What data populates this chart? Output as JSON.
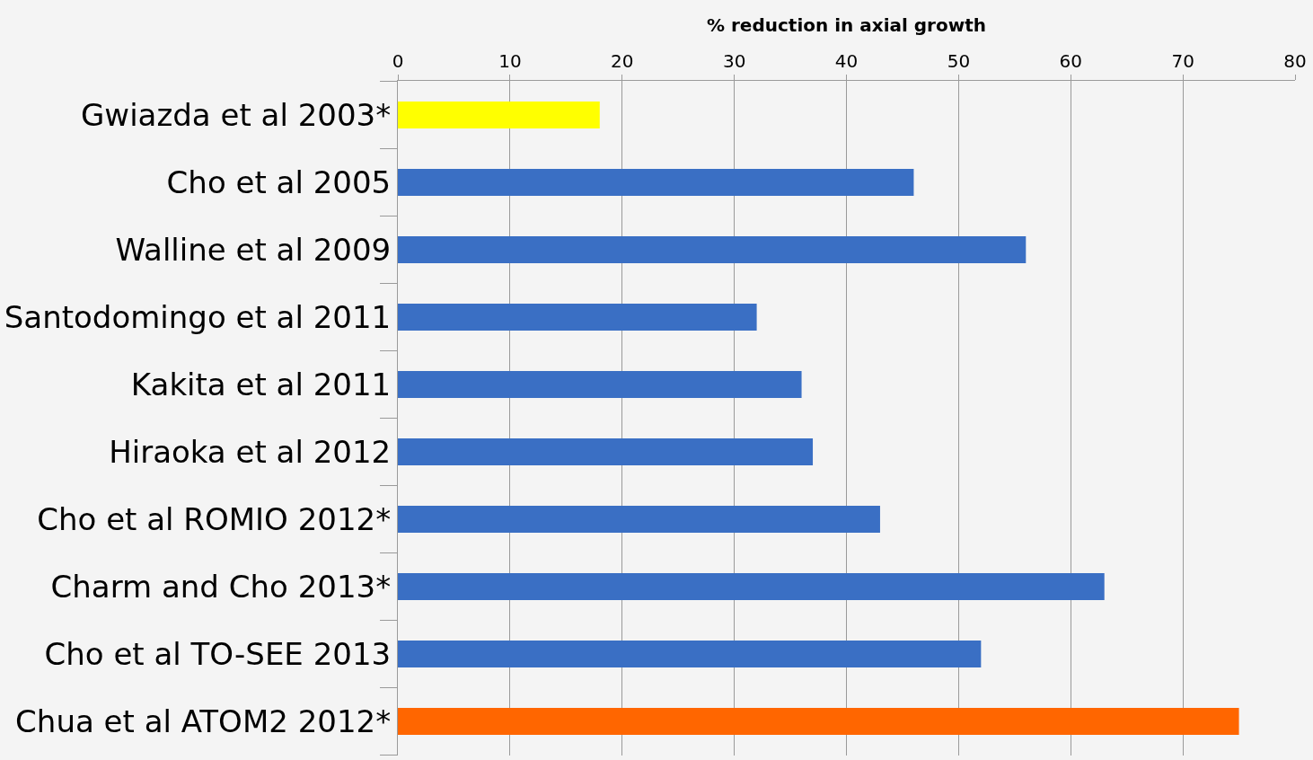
{
  "chart_data": {
    "type": "bar",
    "orientation": "horizontal",
    "xlabel": "% reduction in axial growth",
    "categories": [
      "Gwiazda et al 2003*",
      "Cho et al 2005",
      "Walline et al 2009",
      "Santodomingo et al 2011",
      "Kakita et al 2011",
      "Hiraoka et al 2012",
      "Cho et al ROMIO 2012*",
      "Charm and Cho 2013*",
      "Cho et al TO-SEE 2013",
      "Chua et al ATOM2 2012*"
    ],
    "values": [
      18,
      46,
      56,
      32,
      36,
      37,
      43,
      63,
      52,
      75
    ],
    "colors": [
      "#ffff00",
      "#3a6fc4",
      "#3a6fc4",
      "#3a6fc4",
      "#3a6fc4",
      "#3a6fc4",
      "#3a6fc4",
      "#3a6fc4",
      "#3a6fc4",
      "#ff6600"
    ],
    "xlim": [
      0,
      80
    ],
    "xticks": [
      0,
      10,
      20,
      30,
      40,
      50,
      60,
      70,
      80
    ],
    "grid": "x"
  }
}
